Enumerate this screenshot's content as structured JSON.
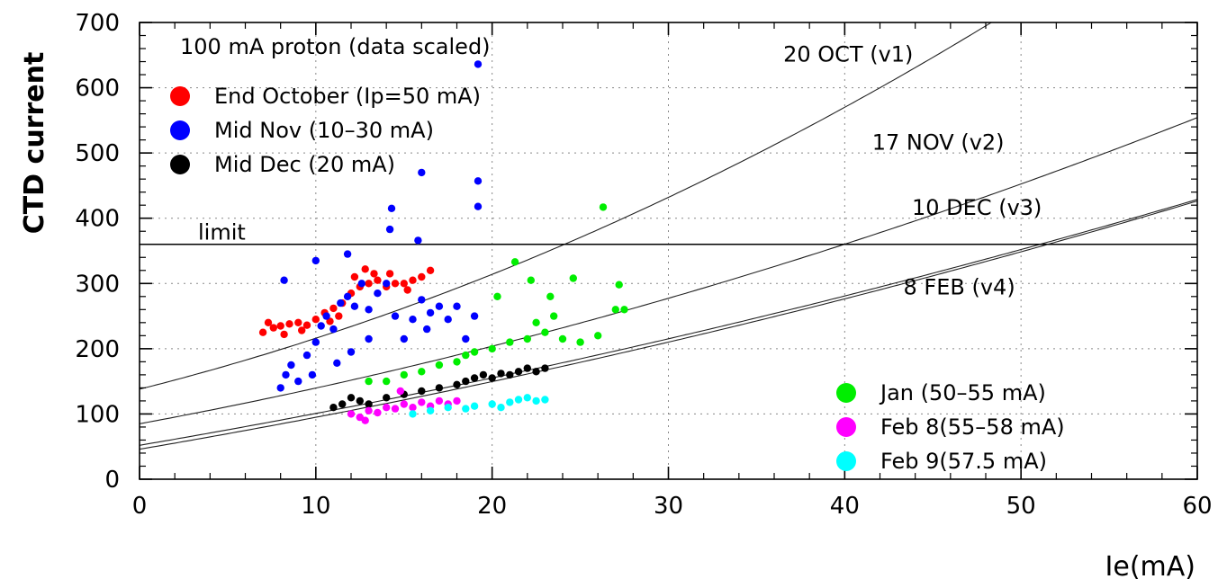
{
  "chart_data": {
    "type": "scatter",
    "title": "100 mA proton (data scaled)",
    "xlabel": "Ie(mA)",
    "ylabel": "CTD current",
    "xlim": [
      0,
      60
    ],
    "ylim": [
      0,
      700
    ],
    "xticks": [
      0,
      10,
      20,
      30,
      40,
      50,
      60
    ],
    "yticks": [
      0,
      100,
      200,
      300,
      400,
      500,
      600,
      700
    ],
    "grid": true,
    "limit": {
      "label": "limit",
      "y": 360
    },
    "curves": [
      {
        "name": "20 OCT (v1)",
        "a": 138,
        "b": 6.8,
        "c": 0.1
      },
      {
        "name": "17 NOV (v2)",
        "a": 85,
        "b": 5.0,
        "c": 0.047
      },
      {
        "name": "10 DEC (v3)",
        "a": 52,
        "b": 4.6,
        "c": 0.028
      },
      {
        "name": "8 FEB (v4)",
        "a": 46,
        "b": 4.6,
        "c": 0.029
      }
    ],
    "series": [
      {
        "name": "End October (Ip=50 mA)",
        "color": "#ff0000",
        "points": [
          [
            7,
            225
          ],
          [
            7.3,
            240
          ],
          [
            7.6,
            232
          ],
          [
            8,
            235
          ],
          [
            8.5,
            238
          ],
          [
            9,
            240
          ],
          [
            9.5,
            236
          ],
          [
            10,
            245
          ],
          [
            10.5,
            255
          ],
          [
            11,
            262
          ],
          [
            11.5,
            270
          ],
          [
            12,
            285
          ],
          [
            12.5,
            295
          ],
          [
            13,
            300
          ],
          [
            13.5,
            305
          ],
          [
            14,
            295
          ],
          [
            14.5,
            300
          ],
          [
            15,
            300
          ],
          [
            15.5,
            305
          ],
          [
            16,
            310
          ],
          [
            16.5,
            320
          ],
          [
            12.2,
            310
          ],
          [
            12.8,
            322
          ],
          [
            13.3,
            315
          ],
          [
            14.2,
            315
          ],
          [
            15.2,
            290
          ],
          [
            11.3,
            250
          ],
          [
            9.2,
            228
          ],
          [
            8.2,
            222
          ],
          [
            10.8,
            242
          ]
        ]
      },
      {
        "name": "Mid Nov (10–30 mA)",
        "color": "#0000ff",
        "points": [
          [
            8,
            140
          ],
          [
            8.3,
            160
          ],
          [
            8.6,
            175
          ],
          [
            9,
            150
          ],
          [
            9.5,
            190
          ],
          [
            10,
            210
          ],
          [
            10.3,
            235
          ],
          [
            10.6,
            250
          ],
          [
            11,
            230
          ],
          [
            11.4,
            270
          ],
          [
            11.8,
            280
          ],
          [
            12.2,
            265
          ],
          [
            12.6,
            300
          ],
          [
            13,
            260
          ],
          [
            13.5,
            285
          ],
          [
            14,
            300
          ],
          [
            14.5,
            250
          ],
          [
            15,
            215
          ],
          [
            15.5,
            245
          ],
          [
            16,
            275
          ],
          [
            16.5,
            255
          ],
          [
            17,
            265
          ],
          [
            17.5,
            245
          ],
          [
            18,
            265
          ],
          [
            18.5,
            215
          ],
          [
            19,
            250
          ],
          [
            9.8,
            160
          ],
          [
            11.2,
            178
          ],
          [
            12,
            195
          ],
          [
            8.2,
            305
          ],
          [
            10,
            335
          ],
          [
            11.8,
            345
          ],
          [
            14.2,
            383
          ],
          [
            14.3,
            415
          ],
          [
            15.8,
            366
          ],
          [
            16,
            470
          ],
          [
            19.2,
            418
          ],
          [
            19.2,
            457
          ],
          [
            19.2,
            636
          ],
          [
            13,
            215
          ],
          [
            16.3,
            230
          ]
        ]
      },
      {
        "name": "Mid Dec (20 mA)",
        "color": "#000000",
        "points": [
          [
            11,
            110
          ],
          [
            11.5,
            115
          ],
          [
            12,
            125
          ],
          [
            12.5,
            120
          ],
          [
            13,
            115
          ],
          [
            14,
            125
          ],
          [
            15,
            130
          ],
          [
            16,
            135
          ],
          [
            17,
            140
          ],
          [
            18,
            145
          ],
          [
            18.5,
            150
          ],
          [
            19,
            155
          ],
          [
            19.5,
            160
          ],
          [
            20,
            155
          ],
          [
            20.5,
            162
          ],
          [
            21,
            160
          ],
          [
            21.5,
            165
          ],
          [
            22,
            170
          ],
          [
            22.5,
            165
          ],
          [
            23,
            170
          ]
        ]
      },
      {
        "name": "Jan (50–55 mA)",
        "color": "#00ee00",
        "points": [
          [
            13,
            150
          ],
          [
            14,
            150
          ],
          [
            15,
            160
          ],
          [
            16,
            165
          ],
          [
            17,
            175
          ],
          [
            18,
            180
          ],
          [
            18.5,
            190
          ],
          [
            19,
            195
          ],
          [
            20,
            200
          ],
          [
            21,
            210
          ],
          [
            22,
            215
          ],
          [
            22.5,
            240
          ],
          [
            23,
            225
          ],
          [
            23.5,
            250
          ],
          [
            24,
            215
          ],
          [
            25,
            210
          ],
          [
            26,
            220
          ],
          [
            27,
            260
          ],
          [
            27.5,
            260
          ],
          [
            21.3,
            333
          ],
          [
            22.2,
            305
          ],
          [
            24.6,
            308
          ],
          [
            26.3,
            417
          ],
          [
            27.2,
            298
          ],
          [
            23.3,
            280
          ],
          [
            20.3,
            280
          ]
        ]
      },
      {
        "name": "Feb 8(55–58 mA)",
        "color": "#ff00ff",
        "points": [
          [
            12,
            100
          ],
          [
            12.5,
            95
          ],
          [
            13,
            105
          ],
          [
            13.5,
            102
          ],
          [
            14,
            110
          ],
          [
            14.5,
            108
          ],
          [
            15,
            115
          ],
          [
            15.5,
            110
          ],
          [
            16,
            118
          ],
          [
            16.5,
            112
          ],
          [
            17,
            120
          ],
          [
            17.5,
            115
          ],
          [
            18,
            120
          ],
          [
            12.8,
            90
          ],
          [
            14.8,
            135
          ]
        ]
      },
      {
        "name": "Feb 9(57.5 mA)",
        "color": "#00ffff",
        "points": [
          [
            15.5,
            100
          ],
          [
            16.5,
            105
          ],
          [
            17.5,
            110
          ],
          [
            18.5,
            108
          ],
          [
            19,
            112
          ],
          [
            20,
            115
          ],
          [
            21,
            118
          ],
          [
            21.5,
            122
          ],
          [
            22,
            125
          ],
          [
            22.5,
            120
          ],
          [
            23,
            122
          ],
          [
            20.5,
            110
          ]
        ]
      }
    ]
  }
}
